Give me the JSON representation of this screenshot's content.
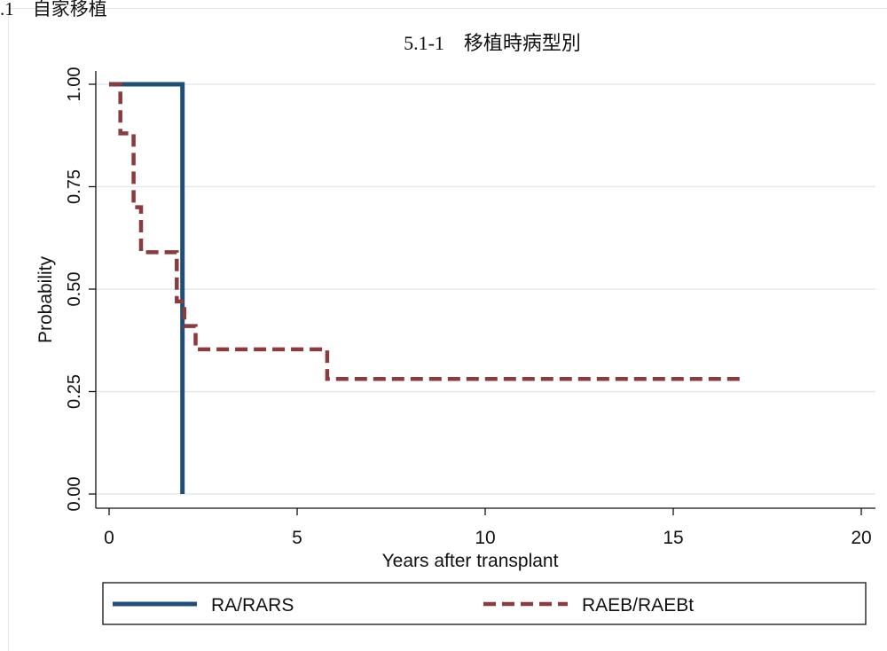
{
  "section_label": ".1　自家移植",
  "chart_data": {
    "type": "line",
    "title": "5.1-1　移植時病型別",
    "xlabel": "Years after transplant",
    "ylabel": "Probability",
    "xlim": [
      0,
      20
    ],
    "ylim": [
      0,
      1
    ],
    "xticks": [
      0,
      5,
      10,
      15,
      20
    ],
    "yticks": [
      0.0,
      0.25,
      0.5,
      0.75,
      1.0
    ],
    "ytick_labels": [
      "0.00",
      "0.25",
      "0.50",
      "0.75",
      "1.00"
    ],
    "grid": "horizontal",
    "legend": "bottom",
    "series": [
      {
        "name": "RA/RARS",
        "color": "#1f4e79",
        "style": "solid",
        "step": true,
        "points": [
          [
            0,
            1.0
          ],
          [
            1.95,
            1.0
          ],
          [
            1.95,
            0.0
          ]
        ]
      },
      {
        "name": "RAEB/RAEBt",
        "color": "#8b3a3e",
        "style": "dashed",
        "step": true,
        "points": [
          [
            0,
            1.0
          ],
          [
            0.3,
            1.0
          ],
          [
            0.3,
            0.88
          ],
          [
            0.65,
            0.88
          ],
          [
            0.65,
            0.7
          ],
          [
            0.85,
            0.7
          ],
          [
            0.85,
            0.59
          ],
          [
            1.8,
            0.59
          ],
          [
            1.8,
            0.47
          ],
          [
            2.0,
            0.47
          ],
          [
            2.0,
            0.41
          ],
          [
            2.3,
            0.41
          ],
          [
            2.3,
            0.353
          ],
          [
            5.8,
            0.353
          ],
          [
            5.8,
            0.281
          ],
          [
            16.9,
            0.281
          ]
        ]
      }
    ]
  }
}
